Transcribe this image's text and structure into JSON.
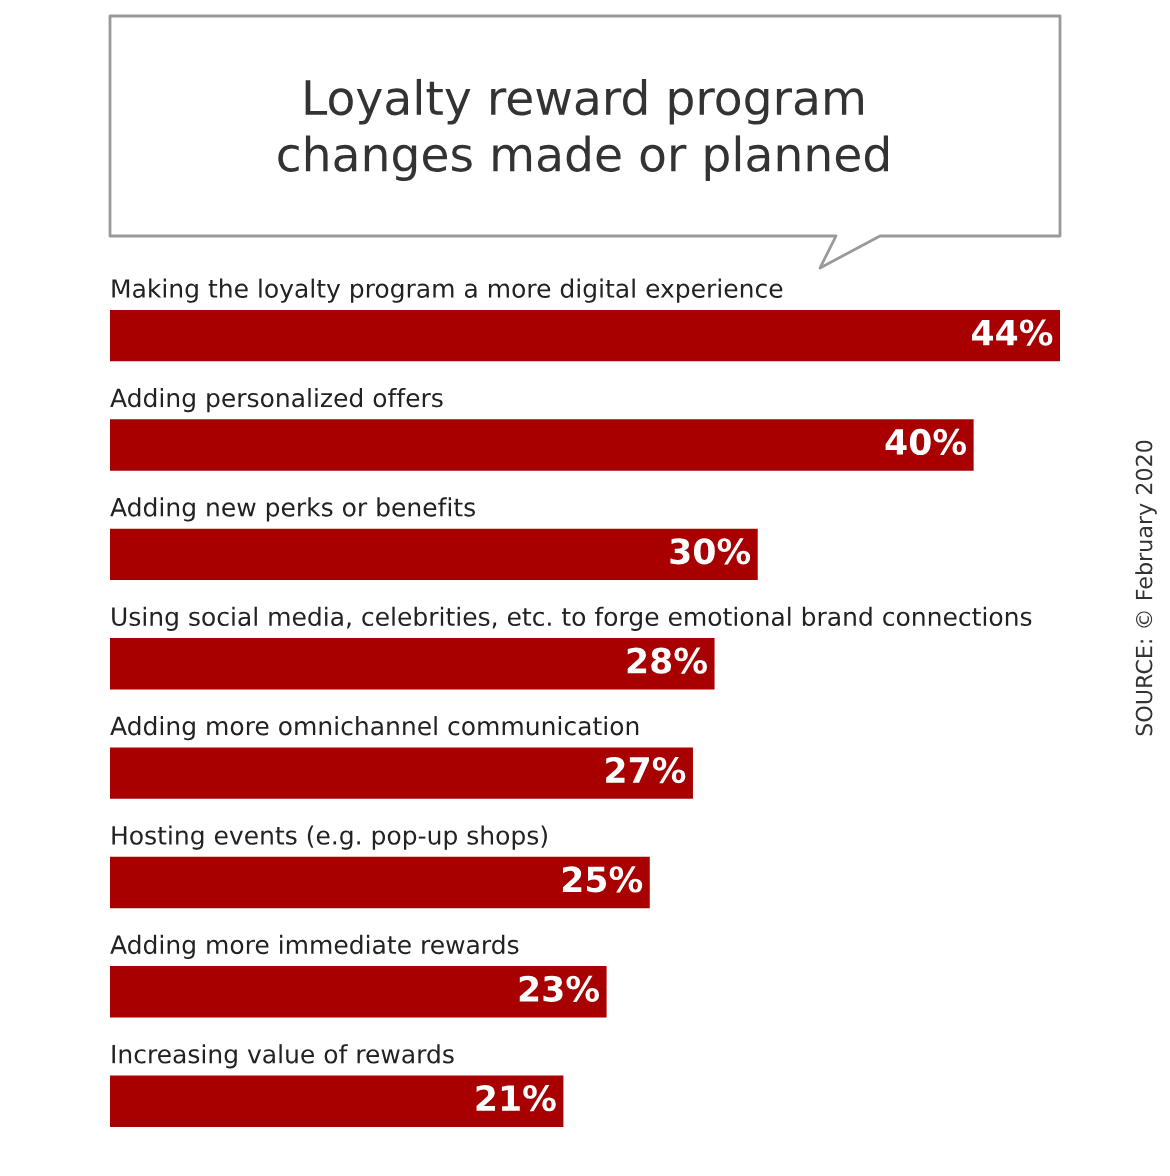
{
  "chart_data": {
    "type": "bar",
    "orientation": "horizontal",
    "title": "Loyalty reward program\nchanges made or planned",
    "categories": [
      "Making the loyalty program a more digital experience",
      "Adding personalized offers",
      "Adding new perks or benefits",
      "Using social media, celebrities, etc. to forge emotional brand connections",
      "Adding more omnichannel communication",
      "Hosting events (e.g. pop-up shops)",
      "Adding more immediate rewards",
      "Increasing value of rewards"
    ],
    "values": [
      44,
      40,
      30,
      28,
      27,
      25,
      23,
      21
    ],
    "value_labels": [
      "44%",
      "40%",
      "30%",
      "28%",
      "27%",
      "25%",
      "23%",
      "21%"
    ],
    "color": "#a80000",
    "annotations": [
      "SOURCE: © February 2020"
    ]
  }
}
